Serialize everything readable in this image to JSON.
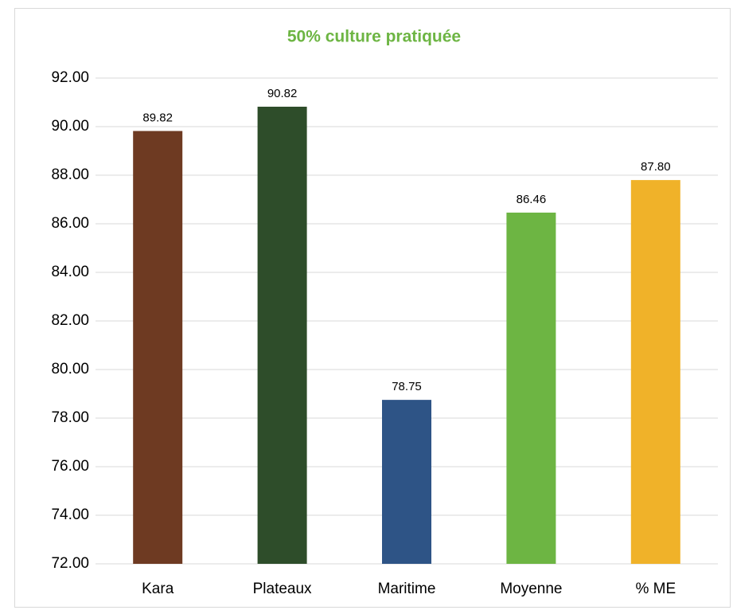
{
  "chart_data": {
    "type": "bar",
    "title": "50% culture pratiquée",
    "categories": [
      "Kara",
      "Plateaux",
      "Maritime",
      "Moyenne",
      "% ME"
    ],
    "values": [
      89.82,
      90.82,
      78.75,
      86.46,
      87.8
    ],
    "value_labels": [
      "89.82",
      "90.82",
      "78.75",
      "86.46",
      "87.80"
    ],
    "colors": [
      "#6e3a22",
      "#2e4d2a",
      "#2e5486",
      "#6db543",
      "#f0b229"
    ],
    "ylim": [
      72,
      92
    ],
    "yticks": [
      {
        "value": 72,
        "label": "72.00"
      },
      {
        "value": 74,
        "label": "74.00"
      },
      {
        "value": 76,
        "label": "76.00"
      },
      {
        "value": 78,
        "label": "78.00"
      },
      {
        "value": 80,
        "label": "80.00"
      },
      {
        "value": 82,
        "label": "82.00"
      },
      {
        "value": 84,
        "label": "84.00"
      },
      {
        "value": 86,
        "label": "86.00"
      },
      {
        "value": 88,
        "label": "88.00"
      },
      {
        "value": 90,
        "label": "90.00"
      },
      {
        "value": 92,
        "label": "92.00"
      }
    ],
    "grid": true
  }
}
